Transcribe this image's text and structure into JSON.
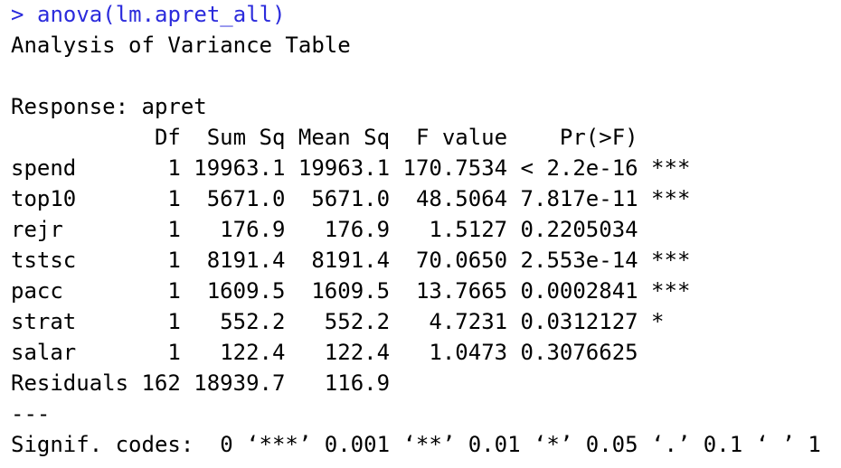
{
  "prompt": ">",
  "command": "anova(lm.apret_all)",
  "title": "Analysis of Variance Table",
  "response": "Response: apret",
  "table": {
    "columns": [
      "Df",
      "Sum Sq",
      "Mean Sq",
      "F value",
      "Pr(>F)"
    ],
    "rows": [
      {
        "name": "spend",
        "df": "1",
        "sum_sq": "19963.1",
        "mean_sq": "19963.1",
        "f_value": "170.7534",
        "p": "< 2.2e-16",
        "signif": "***"
      },
      {
        "name": "top10",
        "df": "1",
        "sum_sq": "5671.0",
        "mean_sq": "5671.0",
        "f_value": "48.5064",
        "p": "7.817e-11",
        "signif": "***"
      },
      {
        "name": "rejr",
        "df": "1",
        "sum_sq": "176.9",
        "mean_sq": "176.9",
        "f_value": "1.5127",
        "p": "0.2205034"
      },
      {
        "name": "tstsc",
        "df": "1",
        "sum_sq": "8191.4",
        "mean_sq": "8191.4",
        "f_value": "70.0650",
        "p": "2.553e-14",
        "signif": "***"
      },
      {
        "name": "pacc",
        "df": "1",
        "sum_sq": "1609.5",
        "mean_sq": "1609.5",
        "f_value": "13.7665",
        "p": "0.0002841",
        "signif": "***"
      },
      {
        "name": "strat",
        "df": "1",
        "sum_sq": "552.2",
        "mean_sq": "552.2",
        "f_value": "4.7231",
        "p": "0.0312127",
        "signif": "*"
      },
      {
        "name": "salar",
        "df": "1",
        "sum_sq": "122.4",
        "mean_sq": "122.4",
        "f_value": "1.0473",
        "p": "0.3076625"
      },
      {
        "name": "Residuals",
        "df": "162",
        "sum_sq": "18939.7",
        "mean_sq": "116.9"
      }
    ]
  },
  "separator": "---",
  "signif_codes": "Signif. codes:  0 ‘***’ 0.001 ‘**’ 0.01 ‘*’ 0.05 ‘.’ 0.1 ‘ ’ 1"
}
